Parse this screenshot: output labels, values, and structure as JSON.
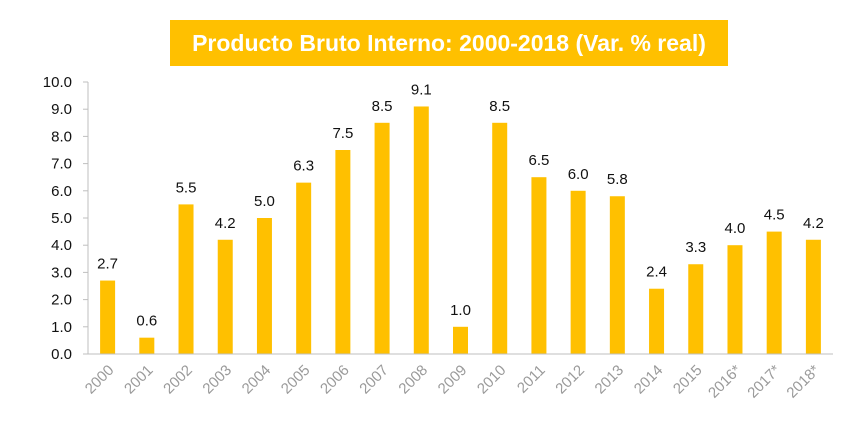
{
  "chart_data": {
    "type": "bar",
    "title": "Producto Bruto Interno: 2000-2018 (Var. % real)",
    "categories": [
      "2000",
      "2001",
      "2002",
      "2003",
      "2004",
      "2005",
      "2006",
      "2007",
      "2008",
      "2009",
      "2010",
      "2011",
      "2012",
      "2013",
      "2014",
      "2015",
      "2016*",
      "2017*",
      "2018*"
    ],
    "values": [
      2.7,
      0.6,
      5.5,
      4.2,
      5.0,
      6.3,
      7.5,
      8.5,
      9.1,
      1.0,
      8.5,
      6.5,
      6.0,
      5.8,
      2.4,
      3.3,
      4.0,
      4.5,
      4.2
    ],
    "value_labels": [
      "2.7",
      "0.6",
      "5.5",
      "4.2",
      "5.0",
      "6.3",
      "7.5",
      "8.5",
      "9.1",
      "1.0",
      "8.5",
      "6.5",
      "6.0",
      "5.8",
      "2.4",
      "3.3",
      "4.0",
      "4.5",
      "4.2"
    ],
    "yticks": [
      "0.0",
      "1.0",
      "2.0",
      "3.0",
      "4.0",
      "5.0",
      "6.0",
      "7.0",
      "8.0",
      "9.0",
      "10.0"
    ],
    "ylim": [
      0,
      10
    ],
    "grid": false,
    "bar_color": "#FFC000",
    "axis_color": "#BFBFBF",
    "xlabel": "",
    "ylabel": ""
  }
}
